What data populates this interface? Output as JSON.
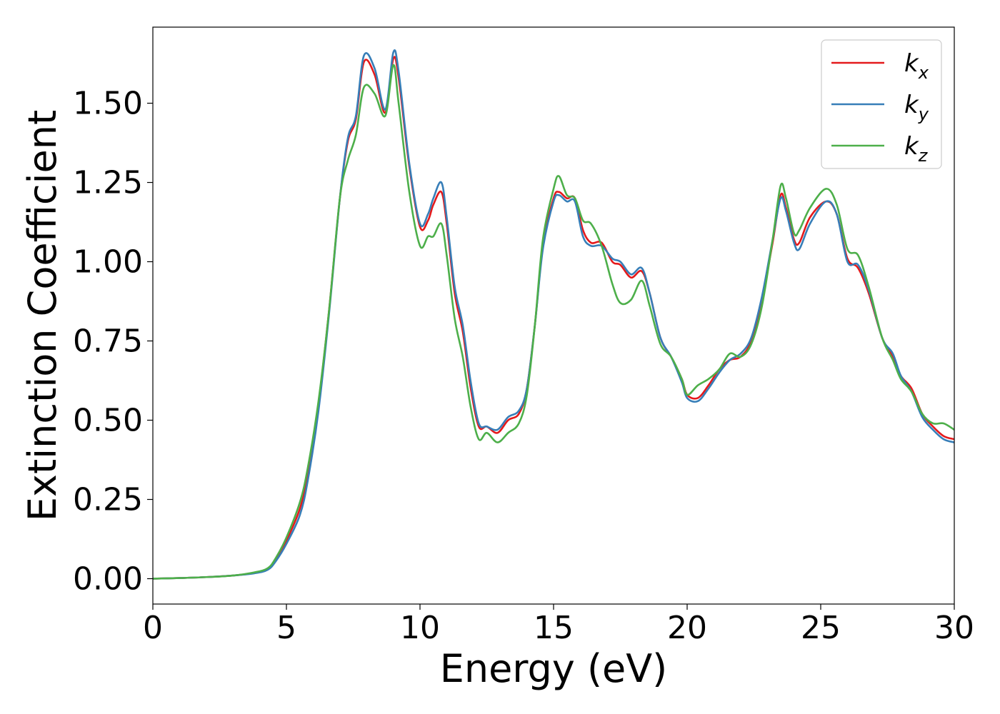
{
  "chart_data": {
    "type": "line",
    "title": "",
    "xlabel": "Energy (eV)",
    "ylabel": "Extinction Coefficient",
    "xlim": [
      0,
      30
    ],
    "ylim": [
      -0.08,
      1.74
    ],
    "xticks": [
      0,
      5,
      10,
      15,
      20,
      25,
      30
    ],
    "xtick_labels": [
      "0",
      "5",
      "10",
      "15",
      "20",
      "25",
      "30"
    ],
    "yticks": [
      0,
      0.25,
      0.5,
      0.75,
      1.0,
      1.25,
      1.5
    ],
    "ytick_labels": [
      "0.00",
      "0.25",
      "0.50",
      "0.75",
      "1.00",
      "1.25",
      "1.50"
    ],
    "grid": false,
    "legend_position": "top-right",
    "series": [
      {
        "name": "kx",
        "legend_base": "k",
        "legend_sub": "x",
        "color": "#e41a1c",
        "points": [
          [
            0,
            0
          ],
          [
            1,
            0.002
          ],
          [
            2,
            0.005
          ],
          [
            3,
            0.01
          ],
          [
            3.8,
            0.018
          ],
          [
            4.3,
            0.03
          ],
          [
            4.6,
            0.06
          ],
          [
            5,
            0.12
          ],
          [
            5.5,
            0.22
          ],
          [
            5.8,
            0.33
          ],
          [
            6.2,
            0.55
          ],
          [
            6.6,
            0.85
          ],
          [
            7,
            1.2
          ],
          [
            7.3,
            1.38
          ],
          [
            7.6,
            1.45
          ],
          [
            7.9,
            1.63
          ],
          [
            8.3,
            1.59
          ],
          [
            8.7,
            1.47
          ],
          [
            9,
            1.64
          ],
          [
            9.2,
            1.58
          ],
          [
            9.6,
            1.3
          ],
          [
            10,
            1.11
          ],
          [
            10.3,
            1.13
          ],
          [
            10.5,
            1.18
          ],
          [
            10.8,
            1.22
          ],
          [
            11,
            1.12
          ],
          [
            11.3,
            0.9
          ],
          [
            11.6,
            0.78
          ],
          [
            11.9,
            0.6
          ],
          [
            12.2,
            0.48
          ],
          [
            12.5,
            0.48
          ],
          [
            12.9,
            0.46
          ],
          [
            13.3,
            0.5
          ],
          [
            13.7,
            0.52
          ],
          [
            14,
            0.6
          ],
          [
            14.3,
            0.8
          ],
          [
            14.6,
            1.05
          ],
          [
            15,
            1.2
          ],
          [
            15.2,
            1.22
          ],
          [
            15.5,
            1.2
          ],
          [
            15.8,
            1.2
          ],
          [
            16.1,
            1.1
          ],
          [
            16.4,
            1.06
          ],
          [
            16.8,
            1.06
          ],
          [
            17.2,
            1.0
          ],
          [
            17.5,
            0.99
          ],
          [
            17.9,
            0.95
          ],
          [
            18.3,
            0.97
          ],
          [
            18.6,
            0.9
          ],
          [
            19,
            0.76
          ],
          [
            19.4,
            0.7
          ],
          [
            19.8,
            0.63
          ],
          [
            20,
            0.58
          ],
          [
            20.4,
            0.57
          ],
          [
            20.8,
            0.61
          ],
          [
            21.2,
            0.66
          ],
          [
            21.6,
            0.69
          ],
          [
            22,
            0.7
          ],
          [
            22.4,
            0.75
          ],
          [
            22.8,
            0.88
          ],
          [
            23.2,
            1.06
          ],
          [
            23.5,
            1.21
          ],
          [
            23.7,
            1.17
          ],
          [
            24,
            1.07
          ],
          [
            24.2,
            1.06
          ],
          [
            24.6,
            1.14
          ],
          [
            25.2,
            1.19
          ],
          [
            25.6,
            1.15
          ],
          [
            26,
            1.01
          ],
          [
            26.4,
            0.98
          ],
          [
            26.8,
            0.9
          ],
          [
            27.3,
            0.76
          ],
          [
            27.7,
            0.7
          ],
          [
            28,
            0.64
          ],
          [
            28.4,
            0.6
          ],
          [
            28.8,
            0.52
          ],
          [
            29.2,
            0.48
          ],
          [
            29.6,
            0.45
          ],
          [
            30,
            0.44
          ]
        ]
      },
      {
        "name": "ky",
        "legend_base": "k",
        "legend_sub": "y",
        "color": "#377eb8",
        "points": [
          [
            0,
            0
          ],
          [
            1,
            0.002
          ],
          [
            2,
            0.005
          ],
          [
            3,
            0.01
          ],
          [
            3.8,
            0.017
          ],
          [
            4.3,
            0.028
          ],
          [
            4.6,
            0.055
          ],
          [
            5,
            0.11
          ],
          [
            5.5,
            0.2
          ],
          [
            5.8,
            0.31
          ],
          [
            6.2,
            0.53
          ],
          [
            6.6,
            0.84
          ],
          [
            7,
            1.2
          ],
          [
            7.3,
            1.39
          ],
          [
            7.6,
            1.46
          ],
          [
            7.9,
            1.65
          ],
          [
            8.3,
            1.61
          ],
          [
            8.7,
            1.48
          ],
          [
            9,
            1.66
          ],
          [
            9.2,
            1.6
          ],
          [
            9.6,
            1.31
          ],
          [
            10,
            1.12
          ],
          [
            10.3,
            1.15
          ],
          [
            10.5,
            1.2
          ],
          [
            10.8,
            1.25
          ],
          [
            11,
            1.14
          ],
          [
            11.3,
            0.92
          ],
          [
            11.6,
            0.8
          ],
          [
            11.9,
            0.62
          ],
          [
            12.2,
            0.49
          ],
          [
            12.5,
            0.48
          ],
          [
            12.9,
            0.47
          ],
          [
            13.3,
            0.51
          ],
          [
            13.7,
            0.53
          ],
          [
            14,
            0.6
          ],
          [
            14.3,
            0.8
          ],
          [
            14.6,
            1.04
          ],
          [
            15,
            1.19
          ],
          [
            15.2,
            1.21
          ],
          [
            15.5,
            1.19
          ],
          [
            15.8,
            1.19
          ],
          [
            16.1,
            1.08
          ],
          [
            16.4,
            1.05
          ],
          [
            16.8,
            1.05
          ],
          [
            17.2,
            1.01
          ],
          [
            17.5,
            1.0
          ],
          [
            17.9,
            0.96
          ],
          [
            18.3,
            0.98
          ],
          [
            18.6,
            0.9
          ],
          [
            19,
            0.76
          ],
          [
            19.4,
            0.7
          ],
          [
            19.8,
            0.62
          ],
          [
            20,
            0.57
          ],
          [
            20.4,
            0.56
          ],
          [
            20.8,
            0.6
          ],
          [
            21.2,
            0.65
          ],
          [
            21.6,
            0.69
          ],
          [
            22,
            0.71
          ],
          [
            22.4,
            0.76
          ],
          [
            22.8,
            0.89
          ],
          [
            23.2,
            1.07
          ],
          [
            23.5,
            1.2
          ],
          [
            23.7,
            1.16
          ],
          [
            24,
            1.06
          ],
          [
            24.2,
            1.04
          ],
          [
            24.6,
            1.12
          ],
          [
            25.2,
            1.19
          ],
          [
            25.6,
            1.15
          ],
          [
            26,
            1.0
          ],
          [
            26.4,
            0.99
          ],
          [
            26.8,
            0.91
          ],
          [
            27.3,
            0.76
          ],
          [
            27.7,
            0.71
          ],
          [
            28,
            0.64
          ],
          [
            28.4,
            0.59
          ],
          [
            28.8,
            0.51
          ],
          [
            29.2,
            0.47
          ],
          [
            29.6,
            0.44
          ],
          [
            30,
            0.43
          ]
        ]
      },
      {
        "name": "kz",
        "legend_base": "k",
        "legend_sub": "z",
        "color": "#4daf4a",
        "points": [
          [
            0,
            0
          ],
          [
            1,
            0.002
          ],
          [
            2,
            0.005
          ],
          [
            3,
            0.01
          ],
          [
            3.8,
            0.02
          ],
          [
            4.3,
            0.033
          ],
          [
            4.6,
            0.065
          ],
          [
            5,
            0.13
          ],
          [
            5.5,
            0.24
          ],
          [
            5.8,
            0.35
          ],
          [
            6.2,
            0.56
          ],
          [
            6.6,
            0.85
          ],
          [
            7,
            1.2
          ],
          [
            7.3,
            1.32
          ],
          [
            7.6,
            1.4
          ],
          [
            7.9,
            1.55
          ],
          [
            8.3,
            1.53
          ],
          [
            8.7,
            1.46
          ],
          [
            9,
            1.62
          ],
          [
            9.2,
            1.5
          ],
          [
            9.6,
            1.22
          ],
          [
            10,
            1.05
          ],
          [
            10.3,
            1.08
          ],
          [
            10.5,
            1.08
          ],
          [
            10.8,
            1.12
          ],
          [
            11,
            1.02
          ],
          [
            11.3,
            0.82
          ],
          [
            11.6,
            0.7
          ],
          [
            11.9,
            0.54
          ],
          [
            12.2,
            0.44
          ],
          [
            12.5,
            0.46
          ],
          [
            12.9,
            0.43
          ],
          [
            13.3,
            0.46
          ],
          [
            13.7,
            0.49
          ],
          [
            14,
            0.58
          ],
          [
            14.3,
            0.8
          ],
          [
            14.6,
            1.07
          ],
          [
            15,
            1.23
          ],
          [
            15.2,
            1.27
          ],
          [
            15.5,
            1.21
          ],
          [
            15.8,
            1.2
          ],
          [
            16.1,
            1.13
          ],
          [
            16.4,
            1.12
          ],
          [
            16.8,
            1.05
          ],
          [
            17.2,
            0.93
          ],
          [
            17.5,
            0.87
          ],
          [
            17.9,
            0.88
          ],
          [
            18.3,
            0.94
          ],
          [
            18.6,
            0.86
          ],
          [
            19,
            0.74
          ],
          [
            19.4,
            0.7
          ],
          [
            19.8,
            0.63
          ],
          [
            20,
            0.58
          ],
          [
            20.4,
            0.61
          ],
          [
            20.8,
            0.63
          ],
          [
            21.2,
            0.66
          ],
          [
            21.6,
            0.71
          ],
          [
            22,
            0.7
          ],
          [
            22.4,
            0.74
          ],
          [
            22.8,
            0.86
          ],
          [
            23.2,
            1.07
          ],
          [
            23.5,
            1.24
          ],
          [
            23.7,
            1.2
          ],
          [
            24,
            1.09
          ],
          [
            24.2,
            1.1
          ],
          [
            24.6,
            1.17
          ],
          [
            25.2,
            1.23
          ],
          [
            25.6,
            1.18
          ],
          [
            26,
            1.04
          ],
          [
            26.4,
            1.02
          ],
          [
            26.8,
            0.92
          ],
          [
            27.3,
            0.76
          ],
          [
            27.7,
            0.69
          ],
          [
            28,
            0.63
          ],
          [
            28.4,
            0.59
          ],
          [
            28.8,
            0.52
          ],
          [
            29.2,
            0.49
          ],
          [
            29.6,
            0.49
          ],
          [
            30,
            0.47
          ]
        ]
      }
    ]
  }
}
